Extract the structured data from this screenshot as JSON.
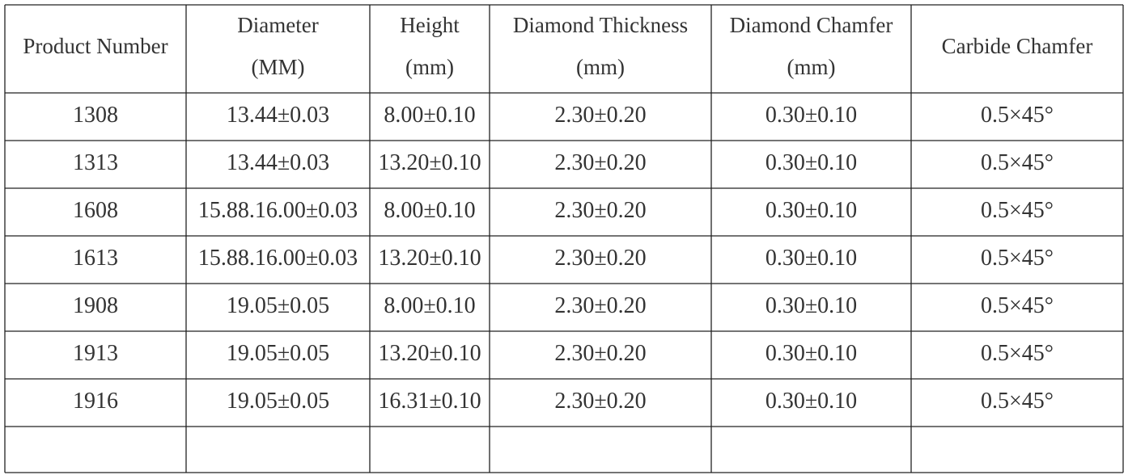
{
  "table": {
    "header": [
      [
        "Product Number"
      ],
      [
        "Diameter",
        "(MM)"
      ],
      [
        "Height",
        "(mm)"
      ],
      [
        "Diamond Thickness",
        "(mm)"
      ],
      [
        "Diamond Chamfer",
        "(mm)"
      ],
      [
        "Carbide Chamfer"
      ]
    ],
    "rows": [
      [
        "1308",
        "13.44±0.03",
        "8.00±0.10",
        "2.30±0.20",
        "0.30±0.10",
        "0.5×45°"
      ],
      [
        "1313",
        "13.44±0.03",
        "13.20±0.10",
        "2.30±0.20",
        "0.30±0.10",
        "0.5×45°"
      ],
      [
        "1608",
        "15.88.16.00±0.03",
        "8.00±0.10",
        "2.30±0.20",
        "0.30±0.10",
        "0.5×45°"
      ],
      [
        "1613",
        "15.88.16.00±0.03",
        "13.20±0.10",
        "2.30±0.20",
        "0.30±0.10",
        "0.5×45°"
      ],
      [
        "1908",
        "19.05±0.05",
        "8.00±0.10",
        "2.30±0.20",
        "0.30±0.10",
        "0.5×45°"
      ],
      [
        "1913",
        "19.05±0.05",
        "13.20±0.10",
        "2.30±0.20",
        "0.30±0.10",
        "0.5×45°"
      ],
      [
        "1916",
        "19.05±0.05",
        "16.31±0.10",
        "2.30±0.20",
        "0.30±0.10",
        "0.5×45°"
      ]
    ]
  }
}
